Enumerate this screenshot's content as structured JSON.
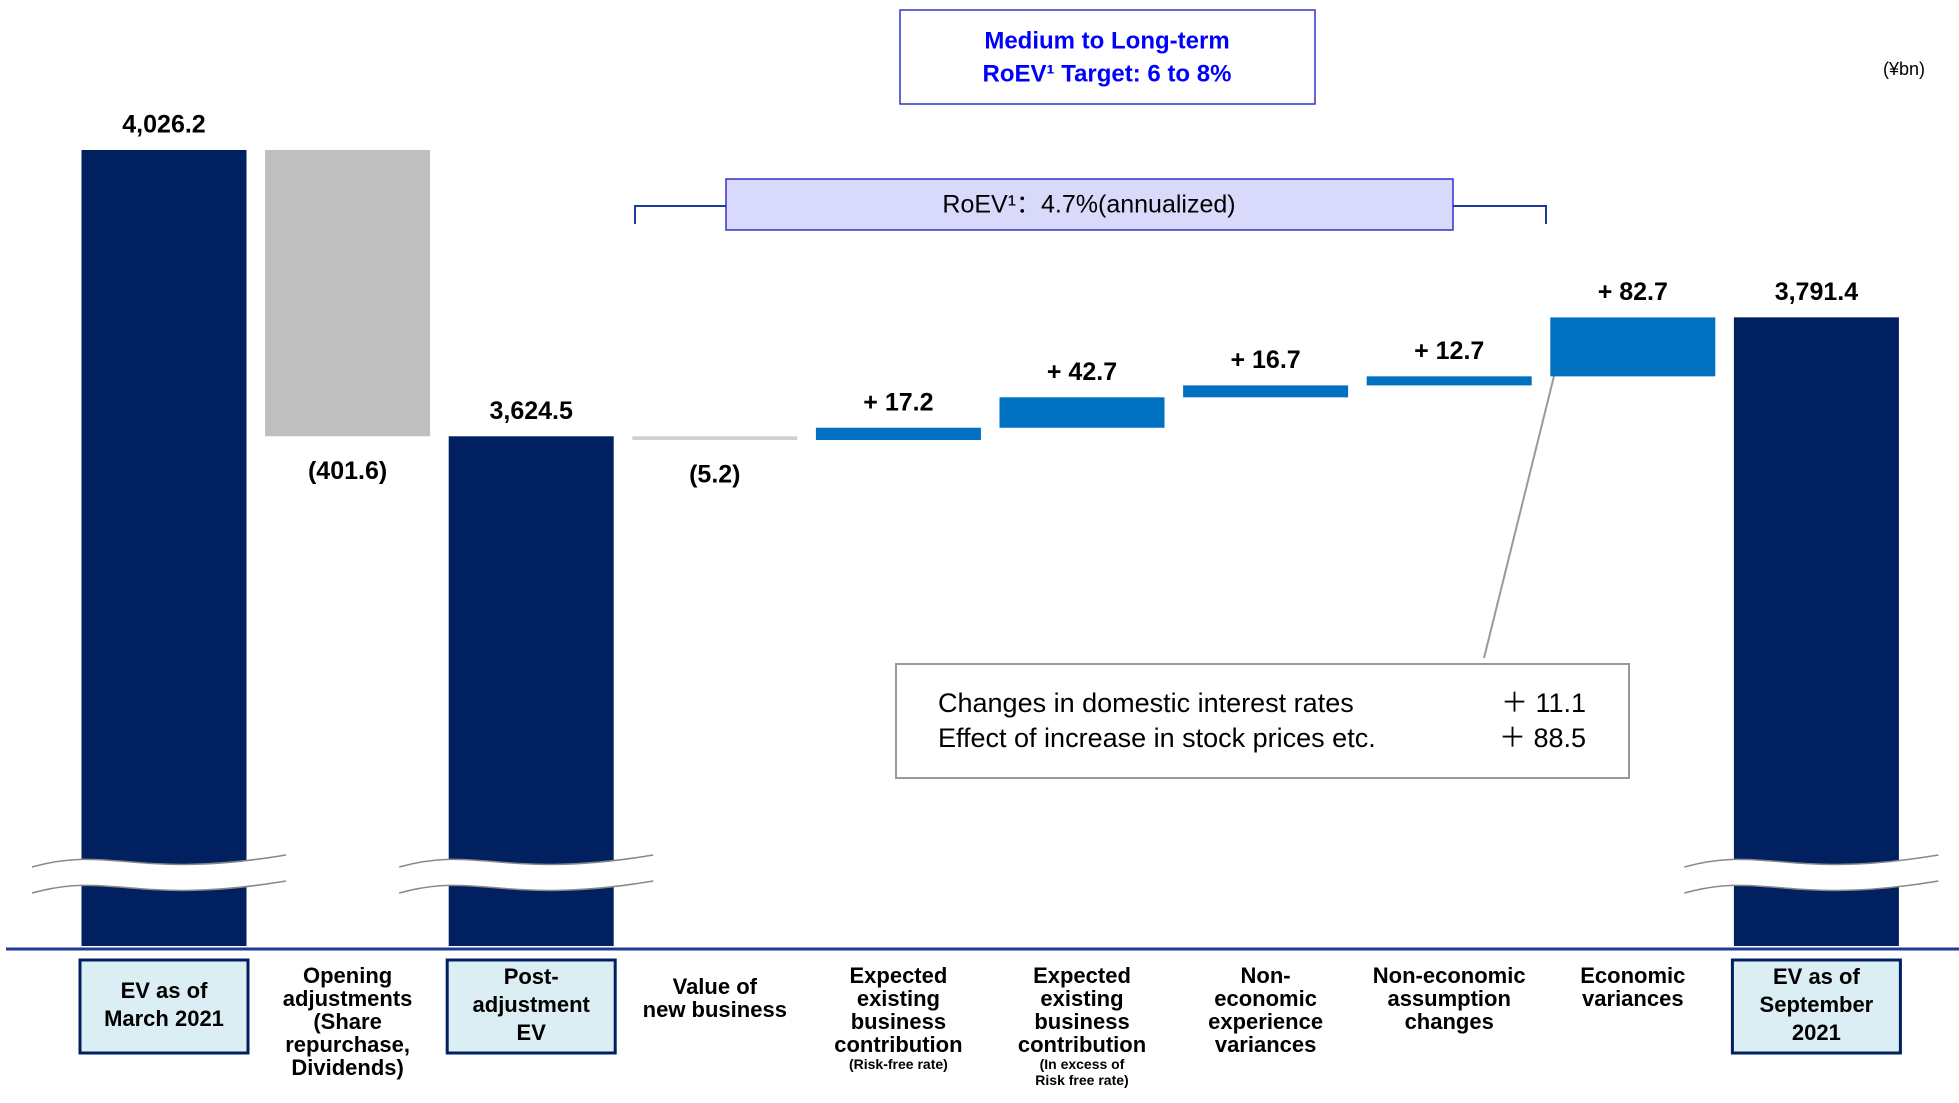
{
  "chart_data": {
    "type": "waterfall",
    "categories": [
      "EV as of\nMarch 2021",
      "Opening\nadjustments\n(Share\nrepurchase,\nDividends)",
      "Post-\nadjustment\nEV",
      "Value of\nnew business",
      "Expected\nexisting\nbusiness\ncontribution",
      "Expected\nexisting\nbusiness\ncontribution",
      "Non-\neconomic\nexperience\nvariances",
      "Non-economic\nassumption\nchanges",
      "Economic\nvariances",
      "EV as of\nSeptember\n2021"
    ],
    "category_notes": [
      null,
      null,
      null,
      null,
      "(Risk-free rate)",
      "(In excess of\nRisk free rate)",
      null,
      null,
      null,
      null
    ],
    "values": [
      4026.2,
      -401.6,
      3624.5,
      -5.2,
      17.2,
      42.7,
      16.7,
      12.7,
      82.7,
      3791.4
    ],
    "value_labels": [
      "4,026.2",
      "(401.6)",
      "3,624.5",
      "(5.2)",
      "+ 17.2",
      "+ 42.7",
      "+ 16.7",
      "+ 12.7",
      "+ 82.7",
      "3,791.4"
    ],
    "totals": [
      0,
      2,
      9
    ],
    "colors": [
      "#002060",
      "#bfbfbf",
      "#002060",
      "#d0d0d0",
      "#0070c0",
      "#0070c0",
      "#0070c0",
      "#0070c0",
      "#0070c0",
      "#002060"
    ],
    "broken_axis": true,
    "annotations": {
      "target": [
        "Medium to Long-term",
        "RoEV¹ Target: 6 to 8%"
      ],
      "unit": "(¥bn)",
      "roev": "RoEV¹：4.7%(annualized)",
      "breakdown": [
        {
          "label": "Changes in domestic interest rates",
          "value": "＋ 11.1"
        },
        {
          "label": "Effect of increase in stock prices etc.",
          "value": "＋ 88.5"
        }
      ]
    }
  }
}
